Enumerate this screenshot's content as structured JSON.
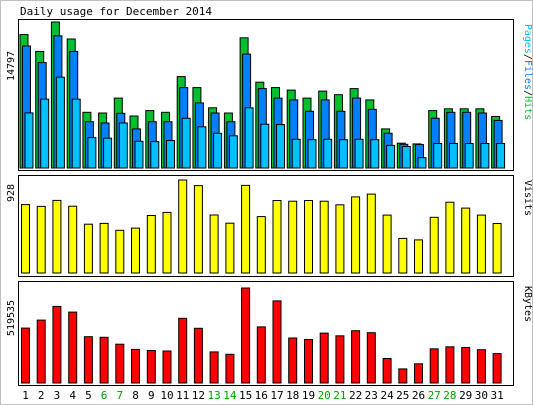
{
  "title": "Daily usage for December 2014",
  "colors": {
    "hits": "#00C030",
    "files": "#0080FF",
    "pages": "#00C0FF",
    "visits": "#FFFF00",
    "kbytes": "#FF0000",
    "weekday_label": "#000000",
    "weekend_label": "#00A000",
    "outline": "#000000",
    "frame": "#808080"
  },
  "chart_data": [
    {
      "type": "bar",
      "name": "hits-files-pages",
      "categories": [
        "1",
        "2",
        "3",
        "4",
        "5",
        "6",
        "7",
        "8",
        "9",
        "10",
        "11",
        "12",
        "13",
        "14",
        "15",
        "16",
        "17",
        "18",
        "19",
        "20",
        "21",
        "22",
        "23",
        "24",
        "25",
        "26",
        "27",
        "28",
        "29",
        "30",
        "31"
      ],
      "weekend": [
        false,
        false,
        false,
        false,
        false,
        true,
        true,
        false,
        false,
        false,
        false,
        false,
        true,
        true,
        false,
        false,
        false,
        false,
        false,
        true,
        true,
        false,
        false,
        false,
        false,
        false,
        true,
        true,
        false,
        false,
        false
      ],
      "max_label": "14797",
      "ylim": [
        0,
        14797
      ],
      "legend": [
        "Pages",
        "Files",
        "Hits"
      ],
      "series": [
        {
          "name": "Hits",
          "values": [
            13520,
            11820,
            14797,
            13070,
            5650,
            5570,
            7080,
            5270,
            5820,
            5650,
            9260,
            8150,
            6100,
            5570,
            13200,
            8700,
            8150,
            7900,
            7080,
            7790,
            7430,
            8050,
            6900,
            3960,
            2510,
            2440,
            5820,
            6000,
            6000,
            6000,
            5220
          ]
        },
        {
          "name": "Files",
          "values": [
            12360,
            10680,
            13400,
            11820,
            4690,
            4560,
            5540,
            3960,
            4690,
            4690,
            8150,
            6600,
            5570,
            4690,
            11540,
            8050,
            7080,
            6900,
            5750,
            6900,
            5750,
            7080,
            5940,
            3520,
            2400,
            2380,
            5040,
            5650,
            5650,
            5570,
            4820
          ]
        },
        {
          "name": "Pages",
          "values": [
            5580,
            6970,
            9200,
            6970,
            3080,
            3020,
            4560,
            2710,
            2680,
            2790,
            5040,
            4180,
            3520,
            3260,
            6100,
            4440,
            4400,
            2910,
            2870,
            2910,
            2870,
            2910,
            2870,
            2290,
            2180,
            1040,
            2480,
            2480,
            2480,
            2480,
            2480
          ]
        }
      ]
    },
    {
      "type": "bar",
      "name": "visits",
      "max_label": "928",
      "ylim": [
        0,
        928
      ],
      "legend": [
        "Visits"
      ],
      "series": [
        {
          "name": "Visits",
          "values": [
            683,
            665,
            724,
            667,
            487,
            495,
            426,
            448,
            574,
            605,
            928,
            872,
            579,
            497,
            874,
            563,
            723,
            716,
            723,
            716,
            681,
            759,
            787,
            578,
            345,
            330,
            556,
            706,
            648,
            578,
            494
          ]
        }
      ]
    },
    {
      "type": "bar",
      "name": "kbytes",
      "max_label": "519535",
      "ylim": [
        0,
        519535
      ],
      "legend": [
        "KBytes"
      ],
      "series": [
        {
          "name": "KBytes",
          "values": [
            300000,
            344000,
            419000,
            388000,
            253000,
            250000,
            212000,
            184000,
            178000,
            175000,
            354000,
            299000,
            170000,
            157000,
            519535,
            307000,
            449000,
            246000,
            238000,
            273000,
            258000,
            286000,
            275000,
            134000,
            77000,
            105000,
            187000,
            198000,
            194000,
            182000,
            161000
          ]
        }
      ]
    }
  ]
}
